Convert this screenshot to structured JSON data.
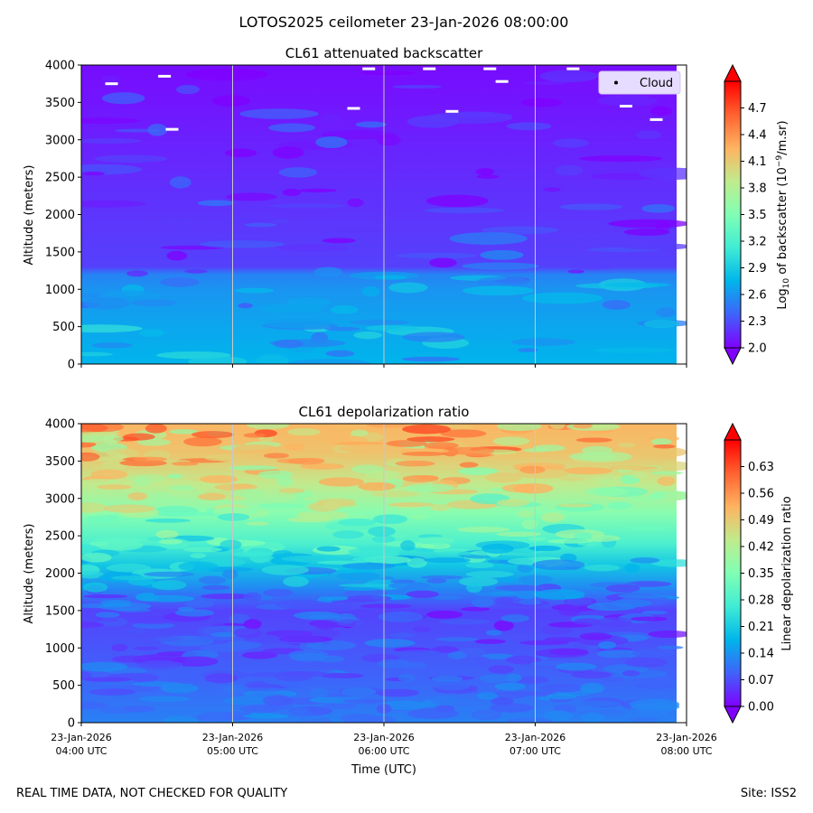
{
  "suptitle": "LOTOS2025 ceilometer 23-Jan-2026 08:00:00",
  "footer": {
    "left": "REAL TIME DATA, NOT CHECKED FOR QUALITY",
    "right": "Site: ISS2"
  },
  "colors": {
    "rainbow": [
      "#8000ff",
      "#4062fa",
      "#00b5eb",
      "#40ecd4",
      "#80ffb4",
      "#c0eb8d",
      "#ffb360",
      "#ff6230",
      "#ff0000"
    ],
    "cloud_marker": "#ffffff",
    "legend_bg": "#e6dcff",
    "gridline": "#c8c8c8"
  },
  "chart_data": [
    {
      "type": "heatmap",
      "title": "CL61 attenuated backscatter",
      "ylabel": "Altitude (meters)",
      "xlabel": "",
      "ylim": [
        0,
        4000
      ],
      "yticks": [
        "0",
        "500",
        "1000",
        "1500",
        "2000",
        "2500",
        "3000",
        "3500",
        "4000"
      ],
      "xlim": [
        "23-Jan-2026 04:00 UTC",
        "23-Jan-2026 08:00 UTC"
      ],
      "xtick_labels": [],
      "colorbar": {
        "label_pre": "Log",
        "label_sub": "10",
        "label_mid": " of backscatter (10",
        "label_sup": "−9",
        "label_post": "/m.sr)",
        "range": [
          2.0,
          5.0
        ],
        "ticks": [
          "2.0",
          "2.3",
          "2.6",
          "2.9",
          "3.2",
          "3.5",
          "3.8",
          "4.1",
          "4.4",
          "4.7"
        ]
      },
      "legend": {
        "entries": [
          "Cloud"
        ],
        "position": "top-right"
      },
      "profile": [
        {
          "altitude": 0,
          "value": 2.75
        },
        {
          "altitude": 500,
          "value": 2.68
        },
        {
          "altitude": 1000,
          "value": 2.6
        },
        {
          "altitude": 1200,
          "value": 2.52
        },
        {
          "altitude": 1300,
          "value": 2.25
        },
        {
          "altitude": 2500,
          "value": 2.17
        },
        {
          "altitude": 3500,
          "value": 2.08
        },
        {
          "altitude": 4000,
          "value": 2.05
        }
      ],
      "cloud_detections": [
        {
          "time_h": 0.55,
          "altitude": 3850
        },
        {
          "time_h": 1.9,
          "altitude": 3950
        },
        {
          "time_h": 2.3,
          "altitude": 3950
        },
        {
          "time_h": 2.7,
          "altitude": 3950
        },
        {
          "time_h": 2.45,
          "altitude": 3380
        },
        {
          "time_h": 1.8,
          "altitude": 3420
        },
        {
          "time_h": 3.8,
          "altitude": 3270
        },
        {
          "time_h": 3.6,
          "altitude": 3450
        },
        {
          "time_h": 0.2,
          "altitude": 3750
        },
        {
          "time_h": 3.25,
          "altitude": 3950
        },
        {
          "time_h": 2.78,
          "altitude": 3780
        },
        {
          "time_h": 0.6,
          "altitude": 3140
        }
      ]
    },
    {
      "type": "heatmap",
      "title": "CL61 depolarization ratio",
      "ylabel": "Altitude (meters)",
      "xlabel": "Time (UTC)",
      "ylim": [
        0,
        4000
      ],
      "yticks": [
        "0",
        "500",
        "1000",
        "1500",
        "2000",
        "2500",
        "3000",
        "3500",
        "4000"
      ],
      "xlim": [
        "23-Jan-2026 04:00 UTC",
        "23-Jan-2026 08:00 UTC"
      ],
      "xtick_labels": [
        [
          "23-Jan-2026",
          "04:00 UTC"
        ],
        [
          "23-Jan-2026",
          "05:00 UTC"
        ],
        [
          "23-Jan-2026",
          "06:00 UTC"
        ],
        [
          "23-Jan-2026",
          "07:00 UTC"
        ],
        [
          "23-Jan-2026",
          "08:00 UTC"
        ]
      ],
      "colorbar": {
        "label": "Linear depolarization ratio",
        "range": [
          0.0,
          0.7
        ],
        "ticks": [
          "0.00",
          "0.07",
          "0.14",
          "0.21",
          "0.28",
          "0.35",
          "0.42",
          "0.49",
          "0.56",
          "0.63"
        ]
      },
      "profile": [
        {
          "altitude": 0,
          "value": 0.12
        },
        {
          "altitude": 600,
          "value": 0.09
        },
        {
          "altitude": 1200,
          "value": 0.07
        },
        {
          "altitude": 1500,
          "value": 0.06
        },
        {
          "altitude": 1800,
          "value": 0.13
        },
        {
          "altitude": 2100,
          "value": 0.2
        },
        {
          "altitude": 2400,
          "value": 0.28
        },
        {
          "altitude": 2800,
          "value": 0.36
        },
        {
          "altitude": 3200,
          "value": 0.44
        },
        {
          "altitude": 3600,
          "value": 0.5
        },
        {
          "altitude": 4000,
          "value": 0.52
        }
      ]
    }
  ]
}
